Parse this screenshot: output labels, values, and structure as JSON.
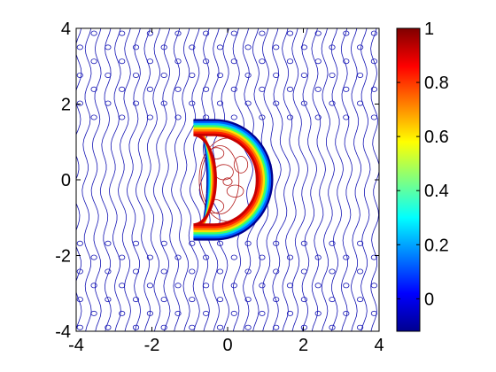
{
  "chart_data": {
    "type": "contour",
    "title": "",
    "xlabel": "",
    "ylabel": "",
    "xlim": [
      -4,
      4
    ],
    "ylim": [
      -4,
      4
    ],
    "x_ticks": [
      "-4",
      "-2",
      "0",
      "2",
      "4"
    ],
    "y_ticks": [
      "4",
      "2",
      "0",
      "-2",
      "-4"
    ],
    "colormap": "jet",
    "colorbar": {
      "range": [
        -0.12,
        1.0
      ],
      "ticks": [
        "1",
        "0.8",
        "0.6",
        "0.4",
        "0.2",
        "0"
      ],
      "tick_values": [
        1.0,
        0.8,
        0.6,
        0.4,
        0.2,
        0.0
      ]
    },
    "filled_region_shape": "crescent",
    "grid": false,
    "legend": "none",
    "colors": {
      "background_contours": "#1414b4",
      "interior_contours": "#b41e1e",
      "boundary_band": [
        "#00008f",
        "#0060ff",
        "#00c8ff",
        "#40ff60",
        "#ffe000",
        "#ff8000",
        "#ff2000",
        "#c80000"
      ]
    }
  }
}
